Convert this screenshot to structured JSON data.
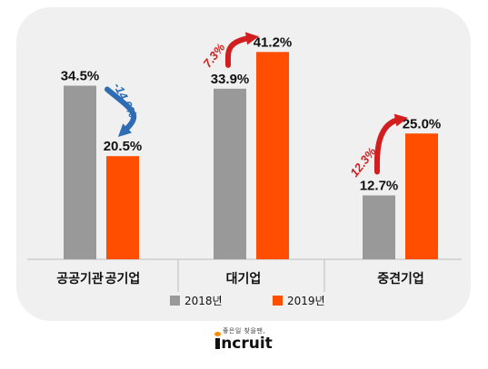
{
  "chart_data": {
    "type": "bar",
    "categories": [
      "공공기관 공기업",
      "대기업",
      "중견기업"
    ],
    "groups": [
      {
        "label": "공공기관",
        "bars": [
          {
            "label": "공공기관",
            "series": "2018년",
            "value": 34.5,
            "value_label": "34.5%"
          },
          {
            "label": "공기업",
            "series": "2019년",
            "value": 20.5,
            "value_label": "20.5%"
          }
        ],
        "change": {
          "direction": "down",
          "value_label": "-14.0%",
          "color": "#2e6db4"
        }
      },
      {
        "label": "대기업",
        "bars": [
          {
            "label": "",
            "series": "2018년",
            "value": 33.9,
            "value_label": "33.9%"
          },
          {
            "label": "",
            "series": "2019년",
            "value": 41.2,
            "value_label": "41.2%"
          }
        ],
        "change": {
          "direction": "up",
          "value_label": "7.3%",
          "color": "#d21e1e"
        }
      },
      {
        "label": "중견기업",
        "bars": [
          {
            "label": "",
            "series": "2018년",
            "value": 12.7,
            "value_label": "12.7%"
          },
          {
            "label": "",
            "series": "2019년",
            "value": 25.0,
            "value_label": "25.0%"
          }
        ],
        "change": {
          "direction": "up",
          "value_label": "12.3%",
          "color": "#d21e1e"
        }
      }
    ],
    "series": [
      {
        "name": "2018년",
        "color": "#999999"
      },
      {
        "name": "2019년",
        "color": "#ff4e00"
      }
    ],
    "ylim": [
      0,
      50
    ],
    "grid": false,
    "legend": "bottom-center"
  },
  "brand": {
    "tagline": "좋은일 찾을땐,",
    "logo": "ncruit",
    "logo_colors": {
      "text": "#111111",
      "dot": "#ff8a00"
    }
  },
  "colors": {
    "panel": "#f0f0f0",
    "axis": "#bdbdbd",
    "text": "#111111"
  }
}
